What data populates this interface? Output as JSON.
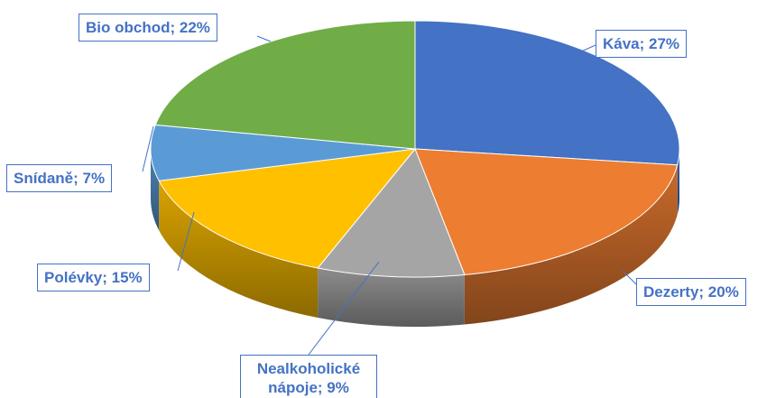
{
  "chart_data": {
    "type": "pie",
    "values": [
      27,
      20,
      9,
      15,
      7,
      22
    ],
    "value_labels": [
      "Káva; 27%",
      "Dezerty; 20%",
      "Nealkoholické nápoje; 9%",
      "Polévky; 15%",
      "Snídaně; 7%",
      "Bio obchod; 22%"
    ],
    "colors": [
      "#4472c4",
      "#ed7d31",
      "#a5a5a5",
      "#ffc000",
      "#5b9bd5",
      "#70ad47"
    ]
  }
}
